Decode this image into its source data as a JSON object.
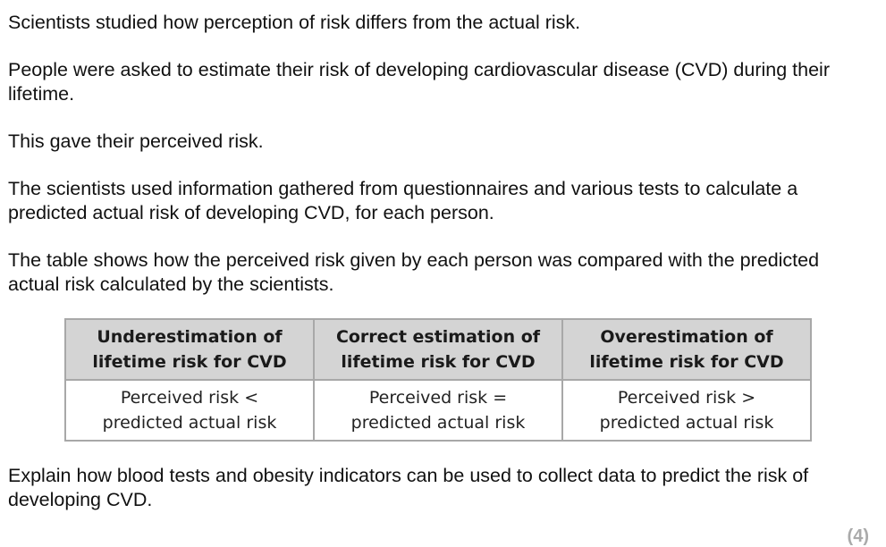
{
  "intro": {
    "p1": "Scientists studied how perception of risk differs from the actual risk.",
    "p2": "People were asked to estimate their risk of developing cardiovascular disease (CVD) during their lifetime.",
    "p3": "This gave their perceived risk.",
    "p4": "The scientists used information gathered from questionnaires and various tests to calculate a predicted actual risk of developing CVD, for each person.",
    "p5": "The table shows how the perceived risk given by each person was compared with the predicted actual risk calculated by the scientists."
  },
  "table": {
    "headers": [
      {
        "line1": "Underestimation of",
        "line2": "lifetime risk for CVD"
      },
      {
        "line1": "Correct estimation of",
        "line2": "lifetime risk for CVD"
      },
      {
        "line1": "Overestimation of",
        "line2": "lifetime risk for CVD"
      }
    ],
    "cells": [
      {
        "line1": "Perceived risk <",
        "line2": "predicted actual risk"
      },
      {
        "line1": "Perceived risk =",
        "line2": "predicted actual risk"
      },
      {
        "line1": "Perceived risk >",
        "line2": "predicted actual risk"
      }
    ]
  },
  "question": "Explain how blood tests and obesity indicators can be used to collect data to predict the risk of developing CVD.",
  "marks": "(4)"
}
